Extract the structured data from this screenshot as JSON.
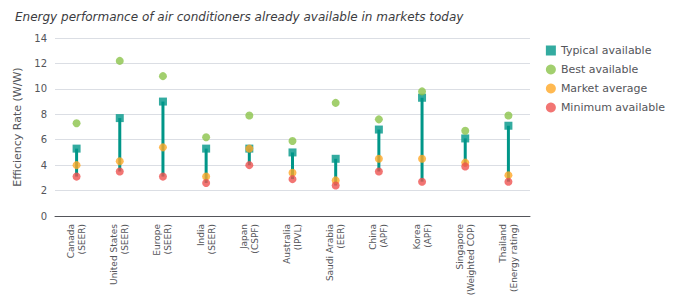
{
  "chart_data": {
    "type": "scatter",
    "title": "Energy performance of air conditioners already available in markets today",
    "ylabel": "Efficiency Rate (W/W)",
    "categories": [
      "Canada\n(SEER)",
      "United States\n(SEER)",
      "Europe\n(SEER)",
      "India\n(SEER)",
      "Japan\n(CSPF)",
      "Australia\n(IPVL)",
      "Saudi Arabia\n(EER)",
      "China\n(APF)",
      "Korea\n(APF)",
      "Singapore\n(Weighted COP)",
      "Thailand\n(Energy rating)"
    ],
    "series": [
      {
        "name": "Typical available",
        "color": "#009688",
        "marker": "square",
        "values": [
          5.3,
          7.7,
          9.0,
          5.3,
          5.3,
          5.0,
          4.5,
          6.8,
          9.3,
          6.1,
          7.1
        ]
      },
      {
        "name": "Best available",
        "color": "#8BC34A",
        "marker": "circle",
        "values": [
          7.3,
          12.2,
          11.0,
          6.2,
          7.9,
          5.9,
          8.9,
          7.6,
          9.8,
          6.7,
          7.9
        ]
      },
      {
        "name": "Market average",
        "color": "#FFA726",
        "marker": "circle",
        "values": [
          4.0,
          4.3,
          5.4,
          3.1,
          5.3,
          3.4,
          2.8,
          4.5,
          4.5,
          4.2,
          3.2
        ]
      },
      {
        "name": "Minimum available",
        "color": "#EF5350",
        "marker": "circle",
        "values": [
          3.1,
          3.5,
          3.1,
          2.6,
          4.0,
          2.9,
          2.4,
          3.5,
          2.7,
          3.9,
          2.7
        ]
      }
    ],
    "ylim": [
      0,
      14
    ],
    "yticks": [
      0,
      2,
      4,
      6,
      8,
      10,
      12,
      14
    ],
    "grid": true,
    "legend": "upper right"
  }
}
